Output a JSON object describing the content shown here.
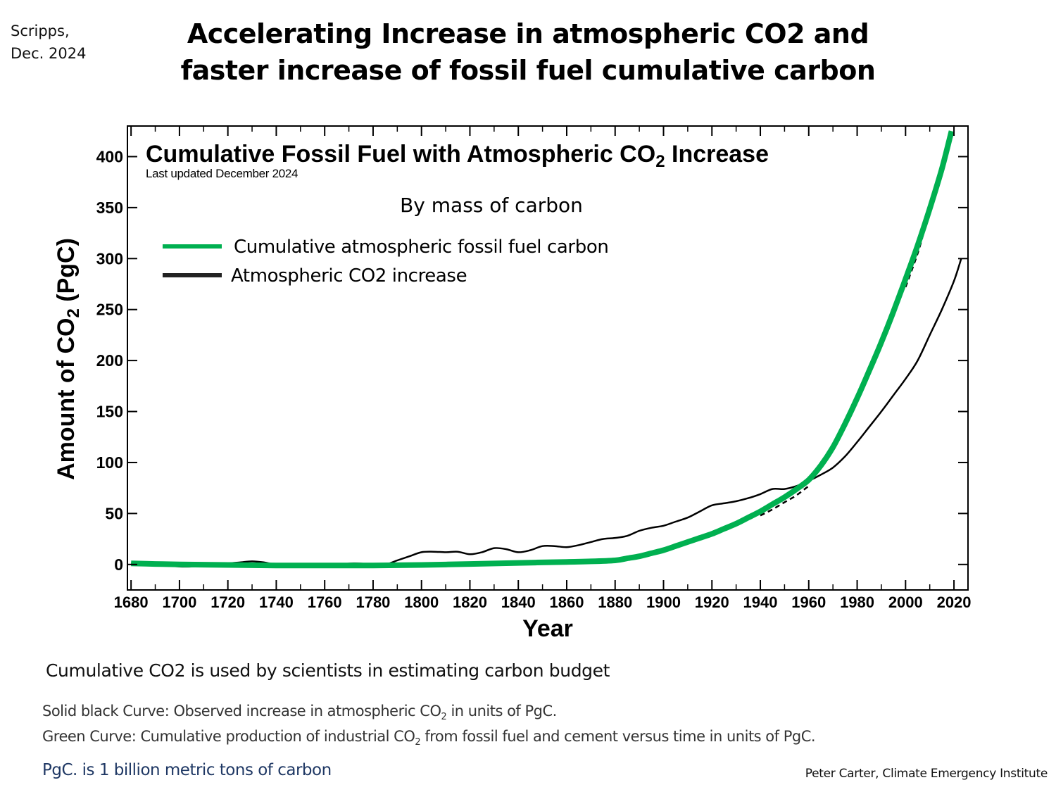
{
  "header": {
    "source_line1": "Scripps,",
    "source_line2": "Dec. 2024",
    "title_line1": "Accelerating Increase in atmospheric CO2 and",
    "title_line2": "faster increase of fossil fuel cumulative carbon"
  },
  "chart_data": {
    "type": "line",
    "title_main": "Cumulative Fossil Fuel with Atmospheric CO",
    "title_sub_script": "2",
    "title_tail": " Increase",
    "subtitle": "Last updated December 2024",
    "annotation": "By mass of carbon",
    "xlabel": "Year",
    "ylabel_main": "Amount of CO",
    "ylabel_sub": "2",
    "ylabel_tail": " (PgC)",
    "xlim": [
      1678.5,
      2025.8
    ],
    "ylim": [
      -25,
      430
    ],
    "x_ticks": [
      1680,
      1700,
      1720,
      1740,
      1760,
      1780,
      1800,
      1820,
      1840,
      1860,
      1880,
      1900,
      1920,
      1940,
      1960,
      1980,
      2000,
      2020
    ],
    "x_tick_labels": [
      "1680",
      "1700",
      "1720",
      "1740",
      "1760",
      "1780",
      "1800",
      "1820",
      "1840",
      "1860",
      "1880",
      "1900",
      "1920",
      "1940",
      "1960",
      "1980",
      "2000",
      "2020"
    ],
    "x_minor_ticks": [
      1690,
      1710,
      1730,
      1750,
      1770,
      1790,
      1810,
      1830,
      1850,
      1870,
      1890,
      1910,
      1930,
      1950,
      1970,
      1990,
      2010
    ],
    "y_ticks": [
      0,
      50,
      100,
      150,
      200,
      250,
      300,
      350,
      400
    ],
    "y_tick_labels": [
      "0",
      "50",
      "100",
      "150",
      "200",
      "250",
      "300",
      "350",
      "400"
    ],
    "grid": false,
    "legend_position": "top-left",
    "legend": [
      {
        "label": "Cumulative atmospheric fossil fuel carbon",
        "color": "#00b050"
      },
      {
        "label": "Atmospheric CO2 increase",
        "color": "#222222"
      }
    ],
    "series": [
      {
        "name": "Atmospheric CO2 increase",
        "color": "#000000",
        "style": "solid",
        "x": [
          1680,
          1690,
          1700,
          1705,
          1712,
          1720,
          1725,
          1730,
          1735,
          1740,
          1750,
          1755,
          1760,
          1765,
          1772,
          1778,
          1785,
          1790,
          1795,
          1800,
          1805,
          1810,
          1815,
          1820,
          1825,
          1830,
          1835,
          1840,
          1845,
          1850,
          1855,
          1860,
          1865,
          1870,
          1875,
          1880,
          1885,
          1890,
          1895,
          1900,
          1905,
          1910,
          1915,
          1920,
          1925,
          1930,
          1935,
          1940,
          1945,
          1950,
          1955,
          1960,
          1965,
          1970,
          1975,
          1980,
          1985,
          1990,
          1995,
          2000,
          2005,
          2010,
          2015,
          2020,
          2023
        ],
        "y": [
          1,
          0,
          -2,
          -2,
          -1,
          1,
          2,
          3,
          2,
          0,
          0,
          0.5,
          0,
          0,
          1,
          0.5,
          0,
          4,
          8,
          12,
          12.5,
          12,
          12.5,
          10,
          12,
          16,
          15,
          12,
          14,
          18,
          18,
          17,
          19,
          22,
          25,
          26,
          28,
          33,
          36,
          38,
          42,
          46,
          52,
          58,
          60,
          62,
          65,
          69,
          74,
          74,
          77,
          82,
          88,
          95,
          106,
          120,
          135,
          150,
          166,
          182,
          200,
          225,
          250,
          278,
          300
        ]
      },
      {
        "name": "Atmospheric CO2 increase (dashed segment)",
        "color": "#000000",
        "style": "dashed",
        "x": [
          1940,
          1945,
          1950,
          1955,
          1960
        ],
        "y": [
          48,
          54,
          61,
          68,
          77
        ]
      },
      {
        "name": "Atmospheric CO2 increase (dashed segment, recent)",
        "color": "#000000",
        "style": "dashed",
        "x": [
          2000,
          2005,
          2008
        ],
        "y": [
          272,
          305,
          330
        ]
      },
      {
        "name": "Cumulative atmospheric fossil fuel carbon",
        "color": "#00b050",
        "style": "solid",
        "x": [
          1680,
          1690,
          1700,
          1720,
          1740,
          1760,
          1780,
          1800,
          1820,
          1840,
          1860,
          1870,
          1880,
          1885,
          1890,
          1895,
          1900,
          1905,
          1910,
          1915,
          1920,
          1925,
          1930,
          1935,
          1940,
          1945,
          1950,
          1955,
          1960,
          1965,
          1970,
          1975,
          1980,
          1985,
          1990,
          1995,
          2000,
          2005,
          2010,
          2015,
          2019
        ],
        "y": [
          1,
          0.5,
          0,
          -0.5,
          -1,
          -1,
          -1,
          -0.5,
          0.5,
          1.5,
          2.5,
          3,
          4,
          6,
          8,
          11,
          14,
          18,
          22,
          26,
          30,
          35,
          40,
          46,
          52,
          59,
          66,
          74,
          83,
          97,
          115,
          138,
          163,
          190,
          218,
          248,
          280,
          313,
          349,
          388,
          425
        ]
      }
    ]
  },
  "footer": {
    "caption": "Cumulative CO2 is used by scientists in estimating carbon budget",
    "note1_pre": "Solid black Curve: Observed increase in atmospheric CO",
    "note1_sub": "2",
    "note1_post": " in units of PgC.",
    "note2_pre": "Green Curve: Cumulative production of industrial CO",
    "note2_sub": "2",
    "note2_post": " from fossil fuel and cement versus time in units of PgC.",
    "pgc_definition": "PgC. is 1 billion metric tons of carbon",
    "credit": "Peter Carter, Climate Emergency Institute"
  }
}
